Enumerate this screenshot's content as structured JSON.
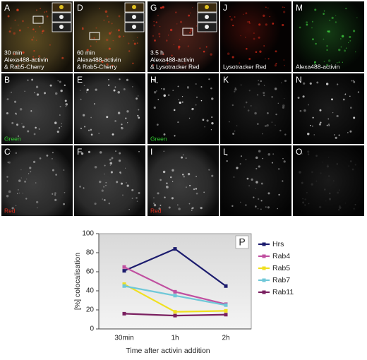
{
  "panels": [
    {
      "label": "A",
      "caption": [
        "30 min",
        "Alexa488-activin",
        "& Rab5-Cherry"
      ],
      "caption_color": "#ffffff"
    },
    {
      "label": "D",
      "caption": [
        "60 min",
        "Alexa488-activin",
        "& Rab5-Cherry"
      ],
      "caption_color": "#ffffff"
    },
    {
      "label": "G",
      "caption": [
        "3.5 h",
        "Alexa488-activin",
        "& Lysotracker Red"
      ],
      "caption_color": "#ffffff"
    },
    {
      "label": "J",
      "caption": [
        "Lysotracker Red"
      ],
      "caption_color": "#ffffff"
    },
    {
      "label": "M",
      "caption": [
        "Alexa488-activin"
      ],
      "caption_color": "#ffffff"
    },
    {
      "label": "B",
      "caption": [
        "Green"
      ],
      "caption_color": "#33cc33"
    },
    {
      "label": "E",
      "caption": [],
      "caption_color": "#ffffff"
    },
    {
      "label": "H",
      "caption": [
        "Green"
      ],
      "caption_color": "#33cc33"
    },
    {
      "label": "K",
      "caption": [],
      "caption_color": "#ffffff"
    },
    {
      "label": "N",
      "caption": [],
      "caption_color": "#ffffff"
    },
    {
      "label": "C",
      "caption": [
        "Red"
      ],
      "caption_color": "#e03020"
    },
    {
      "label": "F",
      "caption": [],
      "caption_color": "#ffffff"
    },
    {
      "label": "I",
      "caption": [
        "Red"
      ],
      "caption_color": "#e03020"
    },
    {
      "label": "L",
      "caption": [],
      "caption_color": "#ffffff"
    },
    {
      "label": "O",
      "caption": [],
      "caption_color": "#ffffff"
    }
  ],
  "chart_data": {
    "type": "line",
    "panel_label": "P",
    "x_label": "Time after activin addition",
    "y_label": "[%] colocalisation",
    "categories": [
      "30min",
      "1h",
      "2h"
    ],
    "ylim": [
      0,
      100
    ],
    "yticks": [
      0,
      20,
      40,
      60,
      80,
      100
    ],
    "legend": "right",
    "series": [
      {
        "name": "Hrs",
        "color": "#1c1c6e",
        "values": [
          61,
          84,
          45
        ]
      },
      {
        "name": "Rab4",
        "color": "#c050a0",
        "values": [
          65,
          39,
          26
        ]
      },
      {
        "name": "Rab5",
        "color": "#f0e020",
        "values": [
          47,
          18,
          19
        ]
      },
      {
        "name": "Rab7",
        "color": "#70c8d8",
        "values": [
          45,
          35,
          25
        ]
      },
      {
        "name": "Rab11",
        "color": "#7a2060",
        "values": [
          16,
          14,
          15
        ]
      }
    ]
  }
}
